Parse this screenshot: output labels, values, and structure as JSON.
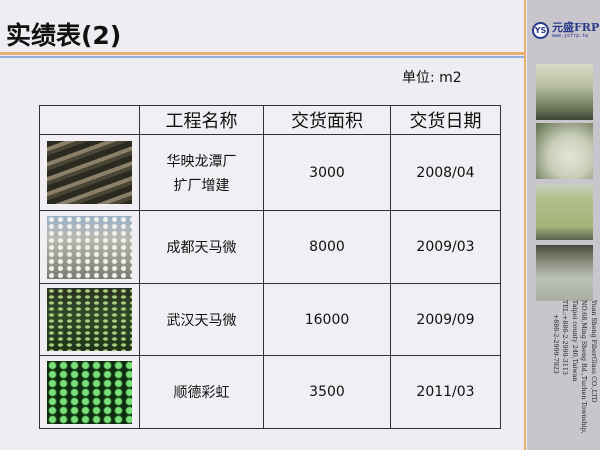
{
  "slide": {
    "title": "实绩表(2)",
    "unit_label": "单位: m2"
  },
  "brand": {
    "logo_mark": "YS",
    "name": "元盛FRP",
    "url": "www.ysfrp.tw",
    "address_lines": [
      "Yuan Sheng FiberGlass CO.,LTD",
      "NO.68,Ming Sheng Rd.,Tuchen Township,",
      "Taipei county 240,Taiwan",
      "TEL:+886-2-2999-3113",
      "+886-2-2999-7923"
    ]
  },
  "colors": {
    "accent_orange": "#e8b070",
    "accent_blue": "#8fb0e0",
    "brand_blue": "#2a3a8a"
  },
  "table": {
    "headers": [
      "",
      "工程名称",
      "交货面积",
      "交货日期"
    ],
    "rows": [
      {
        "name_line1": "华映龙潭厂",
        "name_line2": "扩厂增建",
        "area": "3000",
        "date": "2008/04"
      },
      {
        "name_line1": "成都天马微",
        "name_line2": "",
        "area": "8000",
        "date": "2009/03"
      },
      {
        "name_line1": "武汉天马微",
        "name_line2": "",
        "area": "16000",
        "date": "2009/09"
      },
      {
        "name_line1": "顺德彩虹",
        "name_line2": "",
        "area": "3500",
        "date": "2011/03"
      }
    ]
  }
}
